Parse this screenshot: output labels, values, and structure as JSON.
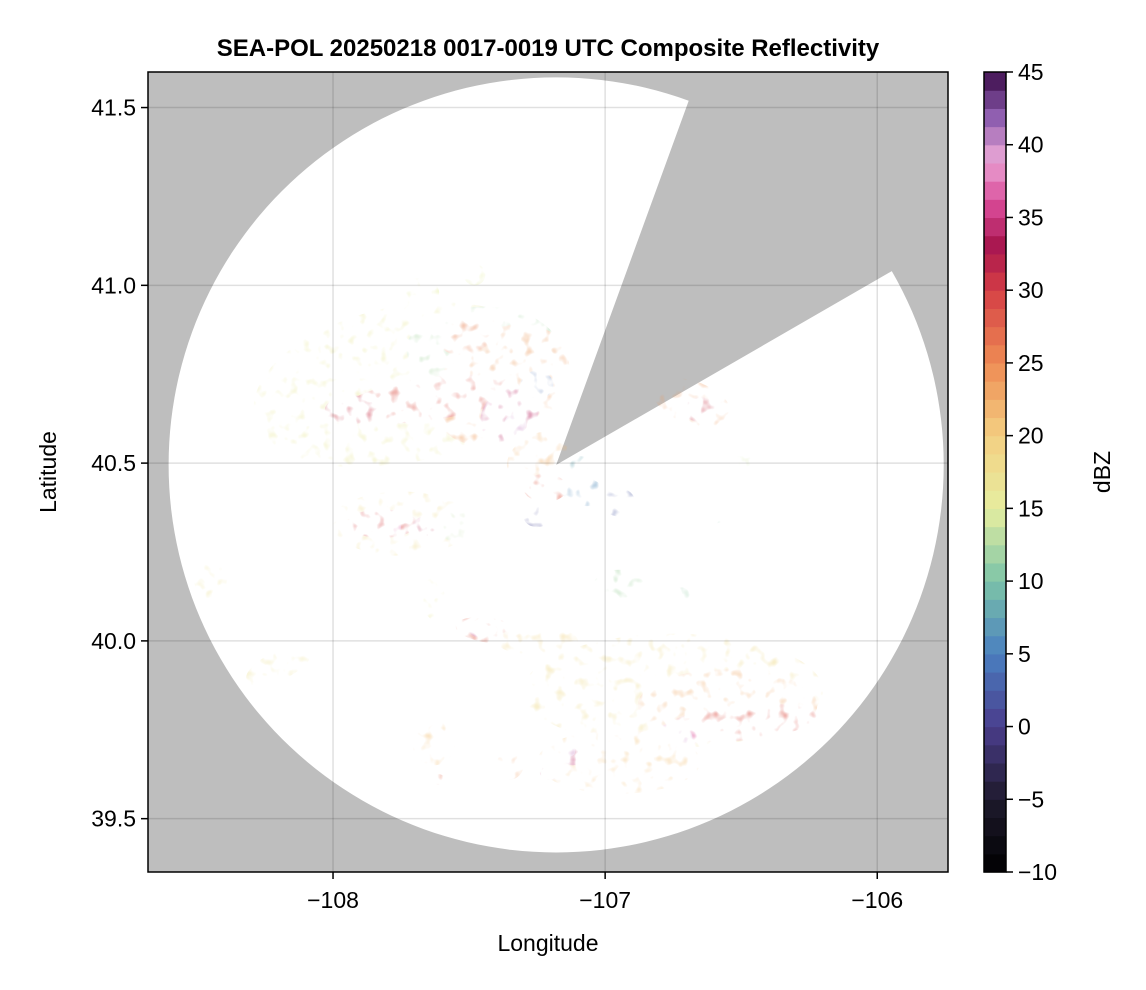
{
  "chart_data": {
    "type": "heatmap",
    "title": "SEA-POL 20250218 0017-0019 UTC Composite Reflectivity",
    "xlabel": "Longitude",
    "ylabel": "Latitude",
    "xlim": [
      -108.68,
      -105.74
    ],
    "ylim": [
      39.35,
      41.6
    ],
    "x_ticks": [
      -108,
      -107,
      -106
    ],
    "x_tick_labels": [
      "−108",
      "−107",
      "−106"
    ],
    "y_ticks": [
      39.5,
      40.0,
      40.5,
      41.0,
      41.5
    ],
    "y_tick_labels": [
      "39.5",
      "40.0",
      "40.5",
      "41.0",
      "41.5"
    ],
    "grid": true,
    "background_color": "#bebebe",
    "no_echo_color": "#ffffff",
    "radar": {
      "center_lon": -107.18,
      "center_lat": 40.495,
      "max_range_lat_deg": 1.09,
      "blocked_sectors_deg_from_north": [
        [
          20,
          60
        ]
      ]
    },
    "colorbar": {
      "label": "dBZ",
      "min": -10,
      "max": 45,
      "step": 1.25,
      "ticks": [
        -10,
        -5,
        0,
        5,
        10,
        15,
        20,
        25,
        30,
        35,
        40,
        45
      ],
      "tick_labels": [
        "−10",
        "−5",
        "0",
        "5",
        "10",
        "15",
        "20",
        "25",
        "30",
        "35",
        "40",
        "45"
      ],
      "colors": [
        {
          "value": -10,
          "color": "#000000"
        },
        {
          "value": -5,
          "color": "#1e1a2c"
        },
        {
          "value": 0,
          "color": "#4a3d8c"
        },
        {
          "value": 5,
          "color": "#4a7fc0"
        },
        {
          "value": 10,
          "color": "#7cc4a8"
        },
        {
          "value": 15,
          "color": "#e6eea0"
        },
        {
          "value": 20,
          "color": "#f4cf82"
        },
        {
          "value": 25,
          "color": "#ee8c54"
        },
        {
          "value": 30,
          "color": "#d53f45"
        },
        {
          "value": 33,
          "color": "#a8164e"
        },
        {
          "value": 36,
          "color": "#d94a98"
        },
        {
          "value": 39,
          "color": "#eaa6d6"
        },
        {
          "value": 42,
          "color": "#8c5cae"
        },
        {
          "value": 45,
          "color": "#3c0c4a"
        }
      ]
    },
    "echo_cells": [
      {
        "lon": -107.75,
        "lat": 40.72,
        "rx": 0.55,
        "ry": 0.22,
        "dbz": 16,
        "angle": -12
      },
      {
        "lon": -107.45,
        "lat": 40.82,
        "rx": 0.28,
        "ry": 0.12,
        "dbz": 12,
        "angle": 0
      },
      {
        "lon": -107.38,
        "lat": 40.72,
        "rx": 0.27,
        "ry": 0.15,
        "dbz": 24,
        "angle": -35
      },
      {
        "lon": -107.65,
        "lat": 40.68,
        "rx": 0.32,
        "ry": 0.06,
        "dbz": 29,
        "angle": -8
      },
      {
        "lon": -107.93,
        "lat": 40.65,
        "rx": 0.1,
        "ry": 0.04,
        "dbz": 31,
        "angle": 0
      },
      {
        "lon": -107.35,
        "lat": 40.64,
        "rx": 0.12,
        "ry": 0.07,
        "dbz": 34,
        "angle": -40
      },
      {
        "lon": -107.33,
        "lat": 40.61,
        "rx": 0.04,
        "ry": 0.03,
        "dbz": 40,
        "angle": 0
      },
      {
        "lon": -107.5,
        "lat": 40.86,
        "rx": 0.11,
        "ry": 0.05,
        "dbz": 26,
        "angle": -20
      },
      {
        "lon": -107.25,
        "lat": 40.72,
        "rx": 0.06,
        "ry": 0.04,
        "dbz": 4,
        "angle": 0
      },
      {
        "lon": -107.25,
        "lat": 40.52,
        "rx": 0.12,
        "ry": 0.06,
        "dbz": 22,
        "angle": -30
      },
      {
        "lon": -107.22,
        "lat": 40.43,
        "rx": 0.08,
        "ry": 0.04,
        "dbz": 28,
        "angle": 0
      },
      {
        "lon": -107.08,
        "lat": 40.42,
        "rx": 0.08,
        "ry": 0.04,
        "dbz": 6,
        "angle": 10
      },
      {
        "lon": -106.95,
        "lat": 40.39,
        "rx": 0.06,
        "ry": 0.04,
        "dbz": 2,
        "angle": 0
      },
      {
        "lon": -107.25,
        "lat": 40.35,
        "rx": 0.05,
        "ry": 0.03,
        "dbz": 1,
        "angle": 0
      },
      {
        "lon": -107.1,
        "lat": 40.5,
        "rx": 0.05,
        "ry": 0.02,
        "dbz": 8,
        "angle": 0
      },
      {
        "lon": -106.68,
        "lat": 40.67,
        "rx": 0.15,
        "ry": 0.06,
        "dbz": 24,
        "angle": 20
      },
      {
        "lon": -106.65,
        "lat": 40.65,
        "rx": 0.06,
        "ry": 0.035,
        "dbz": 31,
        "angle": 0
      },
      {
        "lon": -107.75,
        "lat": 40.33,
        "rx": 0.26,
        "ry": 0.09,
        "dbz": 18,
        "angle": 0
      },
      {
        "lon": -107.82,
        "lat": 40.33,
        "rx": 0.13,
        "ry": 0.04,
        "dbz": 30,
        "angle": 0
      },
      {
        "lon": -107.78,
        "lat": 40.32,
        "rx": 0.03,
        "ry": 0.02,
        "dbz": 37,
        "angle": 0
      },
      {
        "lon": -107.66,
        "lat": 40.32,
        "rx": 0.05,
        "ry": 0.03,
        "dbz": 32,
        "angle": 0
      },
      {
        "lon": -107.55,
        "lat": 40.33,
        "rx": 0.07,
        "ry": 0.05,
        "dbz": 13,
        "angle": 0
      },
      {
        "lon": -106.95,
        "lat": 40.16,
        "rx": 0.09,
        "ry": 0.04,
        "dbz": 12,
        "angle": 0
      },
      {
        "lon": -107.63,
        "lat": 40.12,
        "rx": 0.04,
        "ry": 0.06,
        "dbz": 16,
        "angle": 0
      },
      {
        "lon": -107.43,
        "lat": 40.03,
        "rx": 0.12,
        "ry": 0.035,
        "dbz": 28,
        "angle": 8
      },
      {
        "lon": -107.46,
        "lat": 40.03,
        "rx": 0.04,
        "ry": 0.02,
        "dbz": 34,
        "angle": 0
      },
      {
        "lon": -107.25,
        "lat": 40.0,
        "rx": 0.15,
        "ry": 0.04,
        "dbz": 19,
        "angle": 0
      },
      {
        "lon": -106.75,
        "lat": 39.86,
        "rx": 0.55,
        "ry": 0.16,
        "dbz": 18,
        "angle": 0
      },
      {
        "lon": -106.55,
        "lat": 39.82,
        "rx": 0.33,
        "ry": 0.1,
        "dbz": 23,
        "angle": 0
      },
      {
        "lon": -106.5,
        "lat": 39.77,
        "rx": 0.28,
        "ry": 0.05,
        "dbz": 29,
        "angle": -5
      },
      {
        "lon": -106.74,
        "lat": 39.73,
        "rx": 0.08,
        "ry": 0.04,
        "dbz": 36,
        "angle": 0
      },
      {
        "lon": -106.72,
        "lat": 39.73,
        "rx": 0.04,
        "ry": 0.025,
        "dbz": 40,
        "angle": 0
      },
      {
        "lon": -106.95,
        "lat": 39.66,
        "rx": 0.3,
        "ry": 0.09,
        "dbz": 21,
        "angle": 0
      },
      {
        "lon": -107.12,
        "lat": 39.68,
        "rx": 0.04,
        "ry": 0.03,
        "dbz": 34,
        "angle": 0
      },
      {
        "lon": -107.13,
        "lat": 39.69,
        "rx": 0.02,
        "ry": 0.015,
        "dbz": 40,
        "angle": 0
      },
      {
        "lon": -107.2,
        "lat": 39.63,
        "rx": 0.04,
        "ry": 0.02,
        "dbz": 33,
        "angle": 0
      },
      {
        "lon": -107.63,
        "lat": 39.72,
        "rx": 0.08,
        "ry": 0.07,
        "dbz": 21,
        "angle": 0
      },
      {
        "lon": -107.35,
        "lat": 39.65,
        "rx": 0.05,
        "ry": 0.04,
        "dbz": 24,
        "angle": 0
      },
      {
        "lon": -107.61,
        "lat": 39.61,
        "rx": 0.02,
        "ry": 0.015,
        "dbz": 27,
        "angle": 0
      },
      {
        "lon": -108.2,
        "lat": 39.93,
        "rx": 0.13,
        "ry": 0.04,
        "dbz": 17,
        "angle": -25
      },
      {
        "lon": -108.45,
        "lat": 40.17,
        "rx": 0.06,
        "ry": 0.05,
        "dbz": 17,
        "angle": 0
      },
      {
        "lon": -107.7,
        "lat": 40.98,
        "rx": 0.09,
        "ry": 0.04,
        "dbz": 15,
        "angle": 0
      },
      {
        "lon": -107.48,
        "lat": 41.03,
        "rx": 0.04,
        "ry": 0.03,
        "dbz": 15,
        "angle": 0
      },
      {
        "lon": -106.5,
        "lat": 40.5,
        "rx": 0.05,
        "ry": 0.02,
        "dbz": 14,
        "angle": 0
      },
      {
        "lon": -106.6,
        "lat": 40.35,
        "rx": 0.04,
        "ry": 0.02,
        "dbz": 10,
        "angle": 0
      },
      {
        "lon": -106.72,
        "lat": 40.13,
        "rx": 0.03,
        "ry": 0.02,
        "dbz": 11,
        "angle": 0
      }
    ]
  }
}
